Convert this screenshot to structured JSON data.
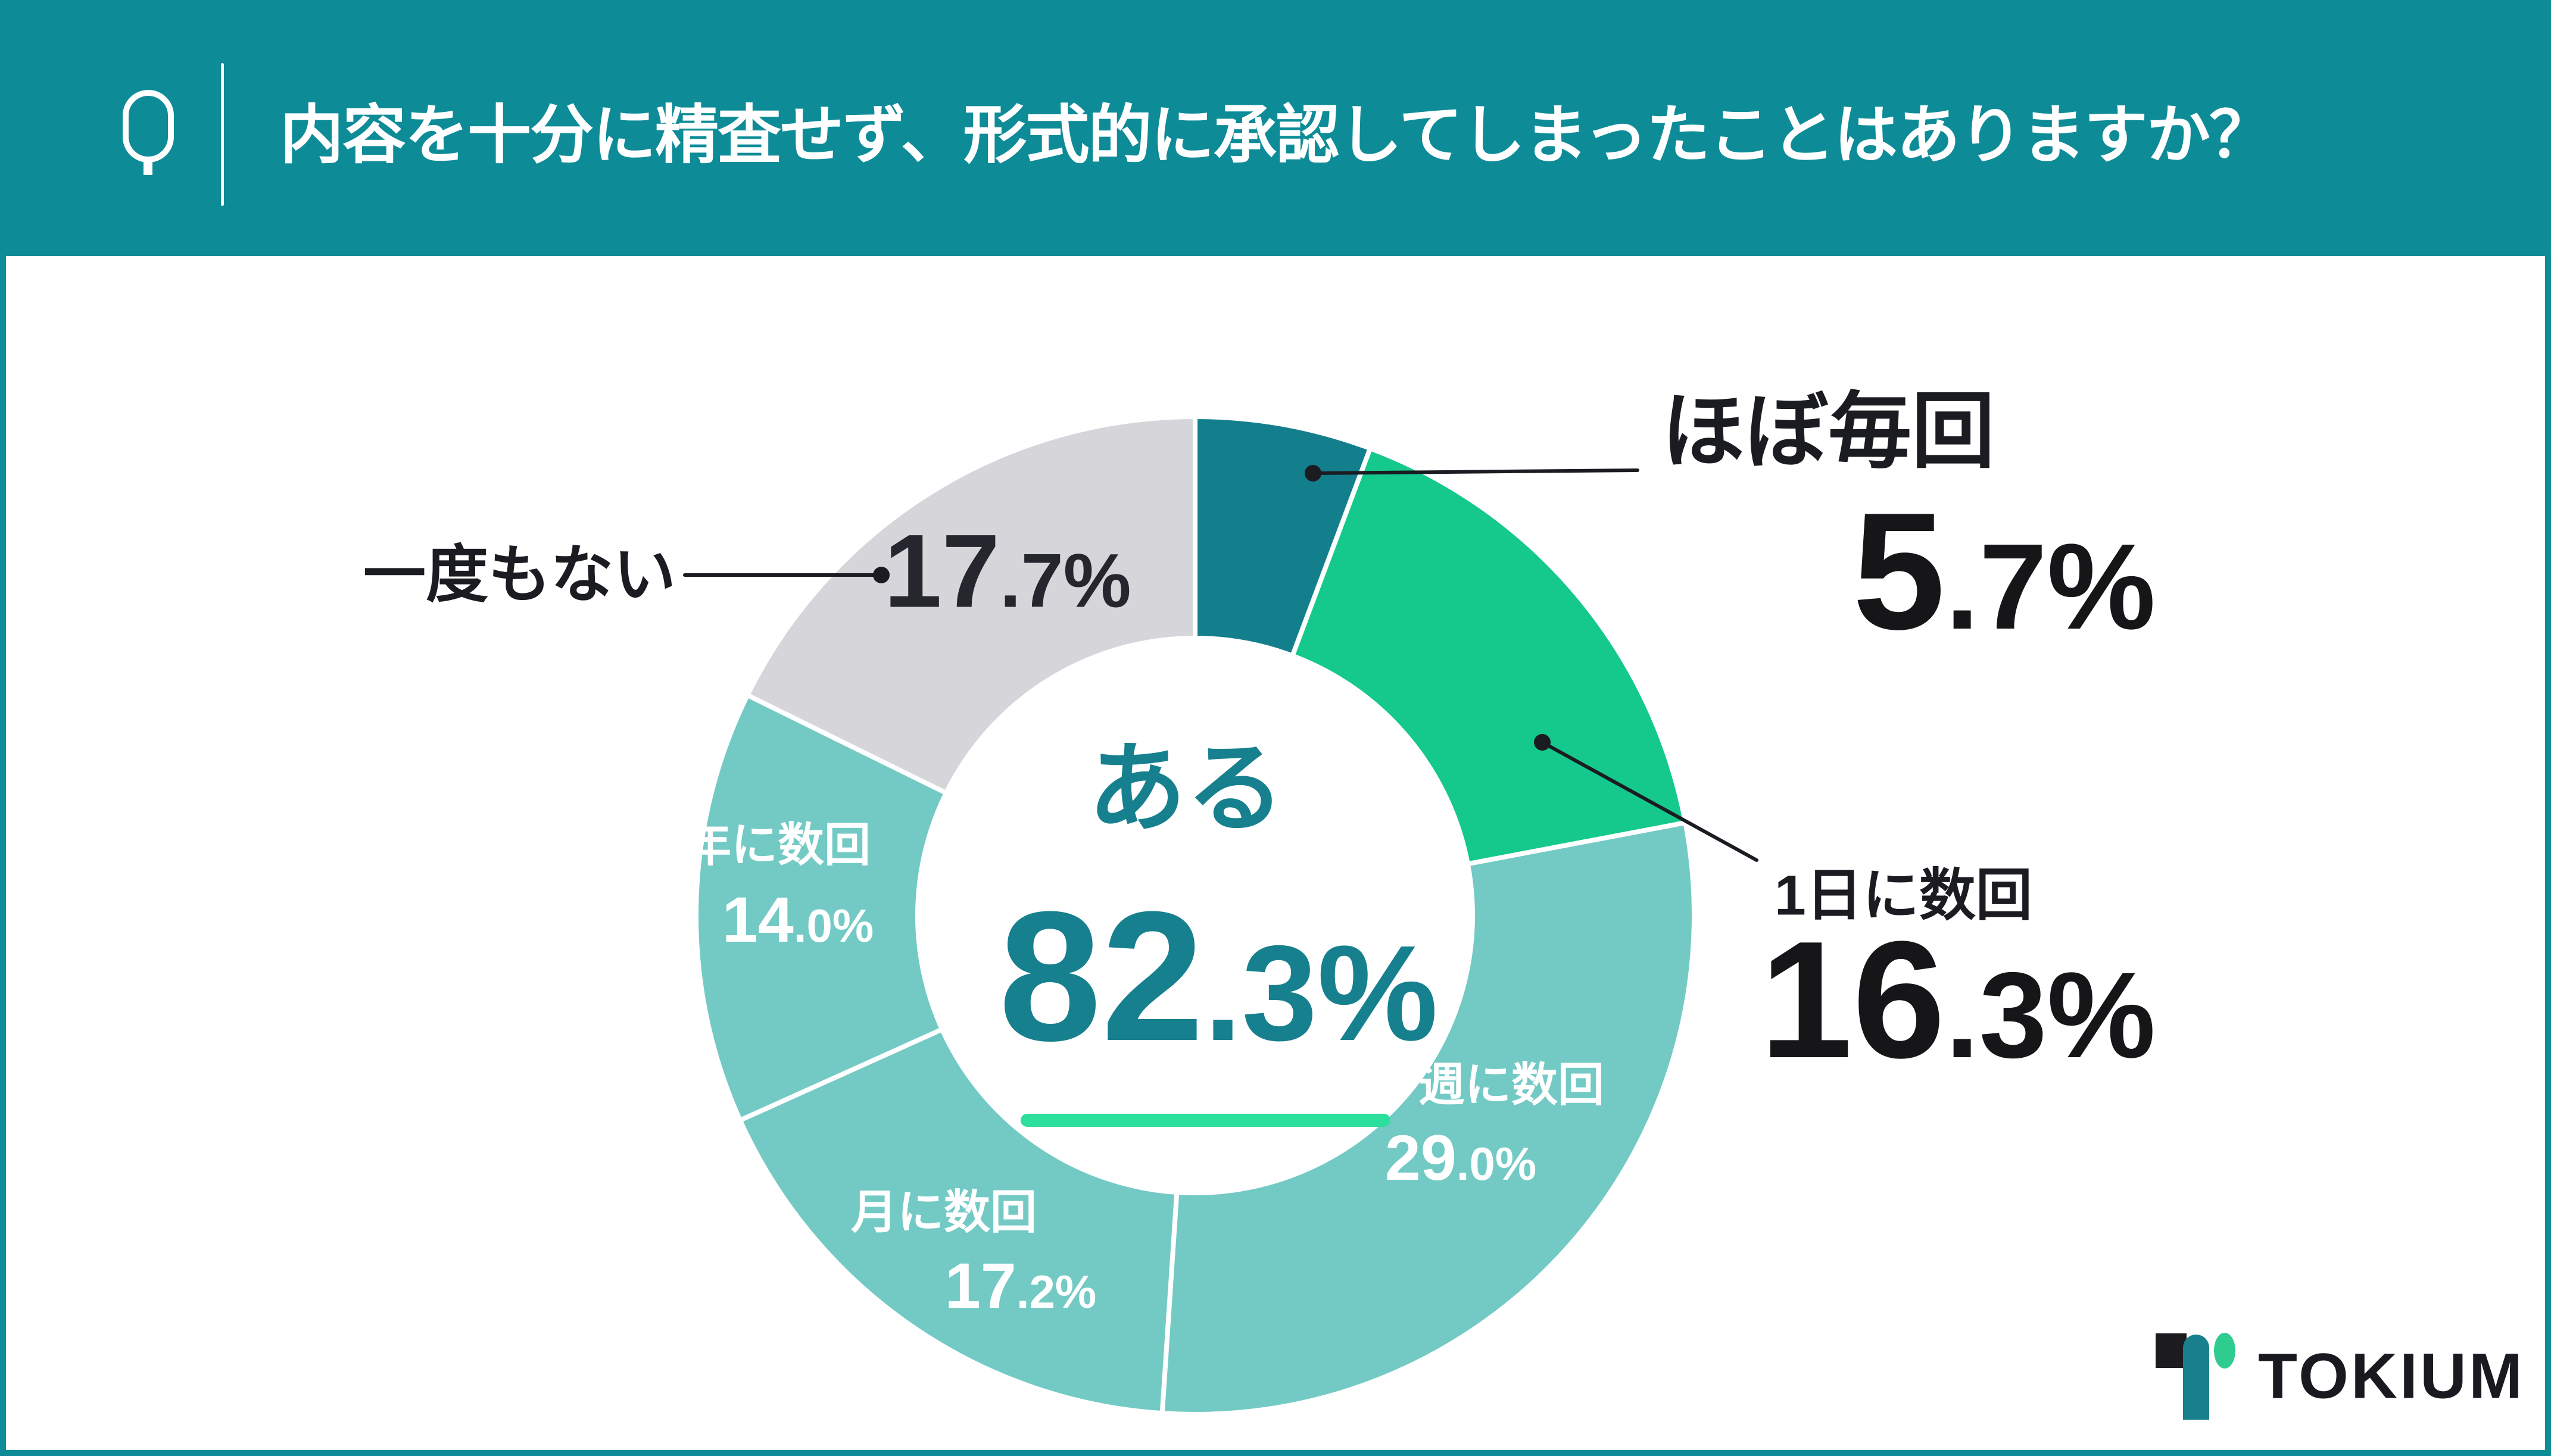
{
  "header": {
    "q_label": "Q",
    "question": "内容を十分に精査せず、形式的に承認してしまったことはありますか？"
  },
  "chart_data": {
    "type": "pie",
    "style": "donut",
    "title": "内容を十分に精査せず、形式的に承認してしまったことはありますか？",
    "legend_position": "none",
    "start_angle_deg": 0,
    "direction": "clockwise",
    "segments": [
      {
        "label": "ほぼ毎回",
        "value": "5.7",
        "value_int": "5",
        "value_frac": ".7%",
        "color": "#137e8c",
        "label_placement": "outside"
      },
      {
        "label": "1日に数回",
        "value": "16.3",
        "value_int": "16",
        "value_frac": ".3%",
        "color": "#14c98b",
        "label_placement": "outside"
      },
      {
        "label": "週に数回",
        "value": "29.0",
        "value_int": "29",
        "value_frac": ".0%",
        "color": "#73cac5",
        "label_placement": "inside"
      },
      {
        "label": "月に数回",
        "value": "17.2",
        "value_int": "17",
        "value_frac": ".2%",
        "color": "#73cac5",
        "label_placement": "inside"
      },
      {
        "label": "年に数回",
        "value": "14.0",
        "value_int": "14",
        "value_frac": ".0%",
        "color": "#73cac5",
        "label_placement": "inside"
      },
      {
        "label": "一度もない",
        "value": "17.7",
        "value_int": "17",
        "value_frac": ".7%",
        "color": "#d6d5da",
        "label_placement": "outside-percent-inside"
      }
    ],
    "center": {
      "label": "ある",
      "value": "82.3%",
      "value_int": "82",
      "value_frac": ".3%",
      "text_color": "#17808e",
      "underline_color": "#2cdf9d"
    }
  },
  "colors": {
    "accent_teal": "#0d8c98",
    "panel_bg": "#ffffff",
    "ink": "#1b1b22",
    "slice_dark_teal": "#137e8c",
    "slice_green": "#14c98b",
    "slice_light_teal": "#73cac5",
    "slice_gray": "#d6d5da"
  },
  "footer": {
    "brand": "TOKIUM"
  }
}
